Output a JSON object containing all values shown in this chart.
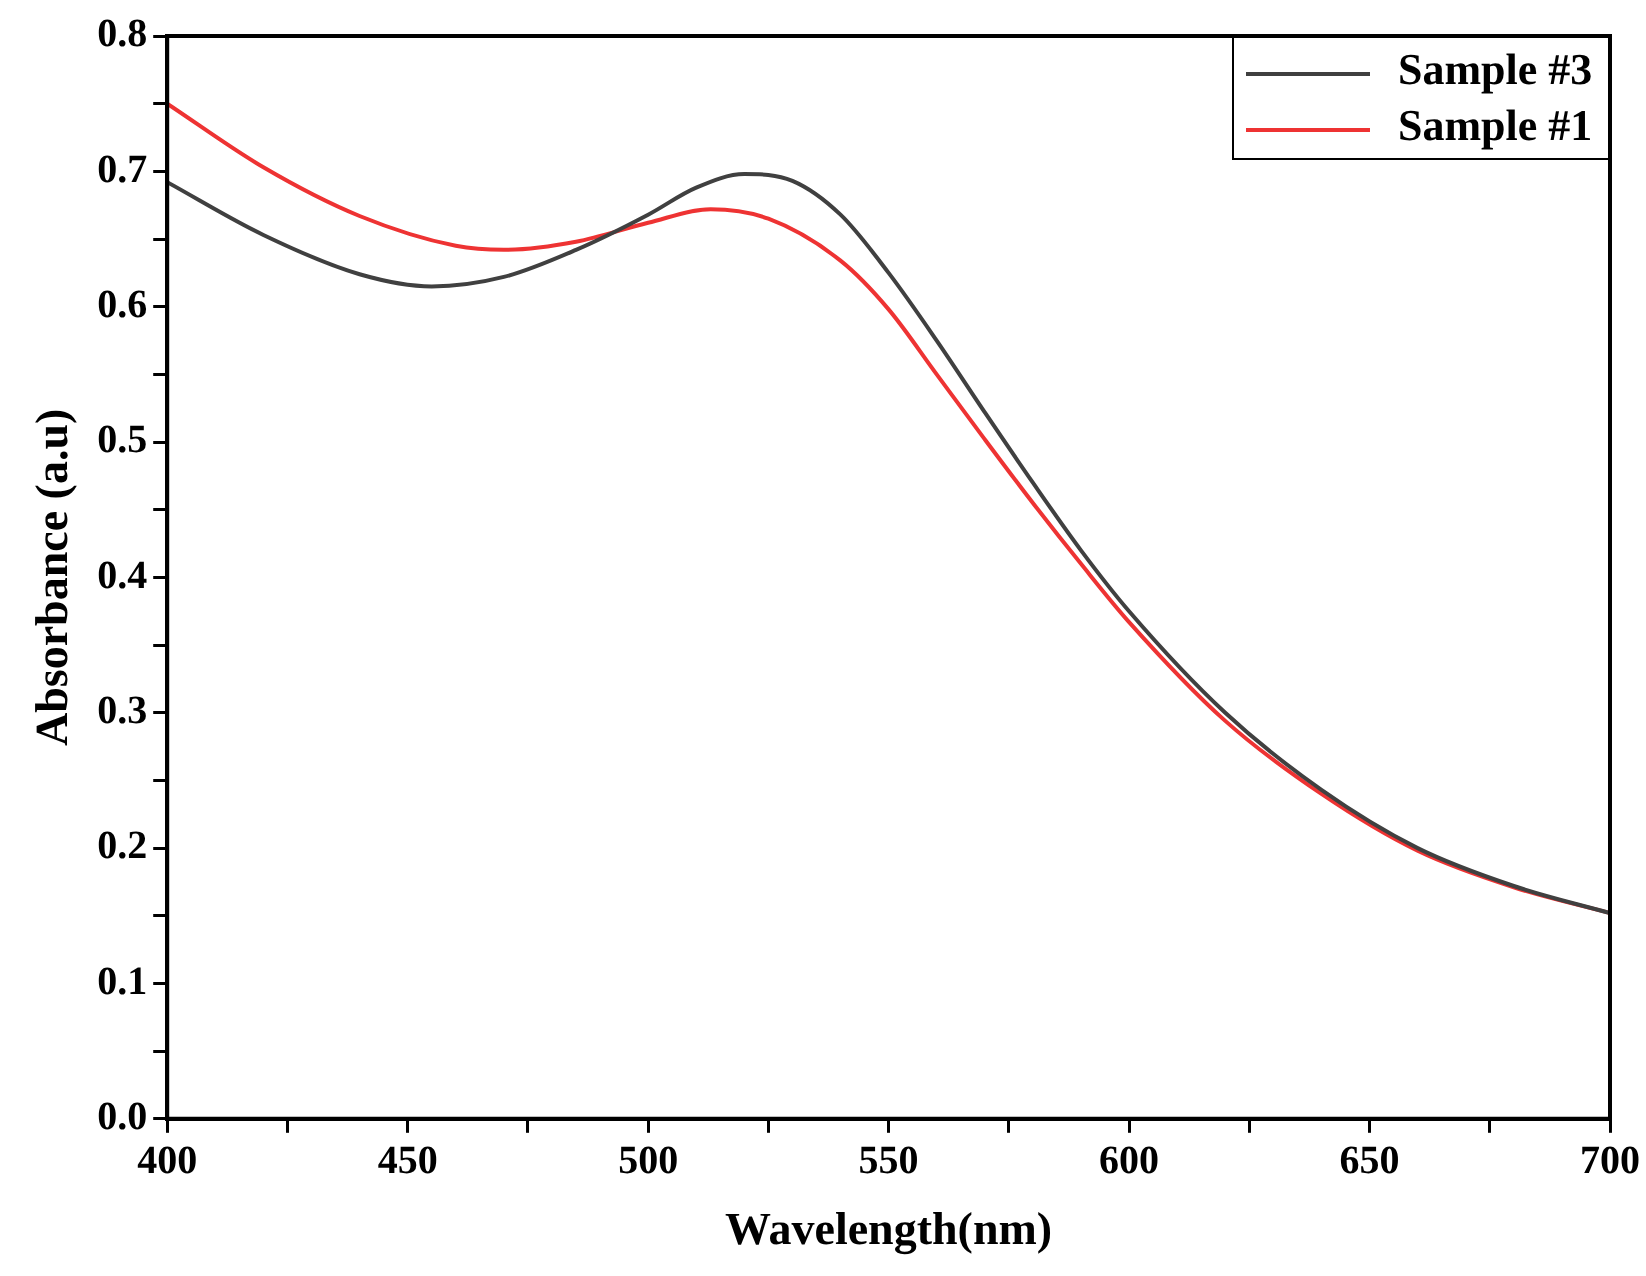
{
  "chart_data": {
    "type": "line",
    "xlabel": "Wavelength(nm)",
    "ylabel": "Absorbance (a.u)",
    "legend": "top right",
    "marker": "none",
    "line_style": "solid",
    "xlim": [
      400,
      700
    ],
    "xticks": [
      400,
      {
        "value": 425,
        "label": null
      },
      450,
      {
        "value": 475,
        "label": null
      },
      500,
      {
        "value": 525,
        "label": null
      },
      550,
      {
        "value": 575,
        "label": null
      },
      600,
      {
        "value": 625,
        "label": null
      },
      650,
      {
        "value": 675,
        "label": null
      },
      700
    ],
    "ylim": [
      0,
      0.8
    ],
    "yticks": [
      "0.0",
      {
        "value": 0.05,
        "label": null
      },
      0.1,
      {
        "value": 0.15,
        "label": null
      },
      0.2,
      {
        "value": 0.25,
        "label": null
      },
      0.3,
      {
        "value": 0.35,
        "label": null
      },
      0.4,
      {
        "value": 0.45,
        "label": null
      },
      0.5,
      {
        "value": 0.55,
        "label": null
      },
      0.6,
      {
        "value": 0.65,
        "label": null
      },
      0.7,
      {
        "value": 0.75,
        "label": null
      },
      0.8
    ],
    "series": [
      {
        "name": "Sample #3",
        "color": "#404040",
        "x": [
          400,
          420,
          440,
          455,
          470,
          485,
          500,
          510,
          520,
          530,
          540,
          550,
          560,
          570,
          580,
          590,
          600,
          620,
          640,
          660,
          680,
          700
        ],
        "values": [
          0.692,
          0.653,
          0.624,
          0.615,
          0.622,
          0.642,
          0.668,
          0.688,
          0.698,
          0.693,
          0.668,
          0.625,
          0.575,
          0.522,
          0.47,
          0.42,
          0.375,
          0.3,
          0.243,
          0.2,
          0.172,
          0.152
        ]
      },
      {
        "name": "Sample #1",
        "color": "#ee3333",
        "x": [
          400,
          420,
          440,
          460,
          470,
          485,
          500,
          513,
          525,
          540,
          550,
          560,
          570,
          580,
          590,
          600,
          620,
          640,
          660,
          680,
          700
        ],
        "values": [
          0.75,
          0.703,
          0.667,
          0.645,
          0.642,
          0.648,
          0.662,
          0.672,
          0.665,
          0.634,
          0.598,
          0.55,
          0.502,
          0.455,
          0.41,
          0.367,
          0.294,
          0.24,
          0.198,
          0.171,
          0.152
        ]
      }
    ]
  }
}
